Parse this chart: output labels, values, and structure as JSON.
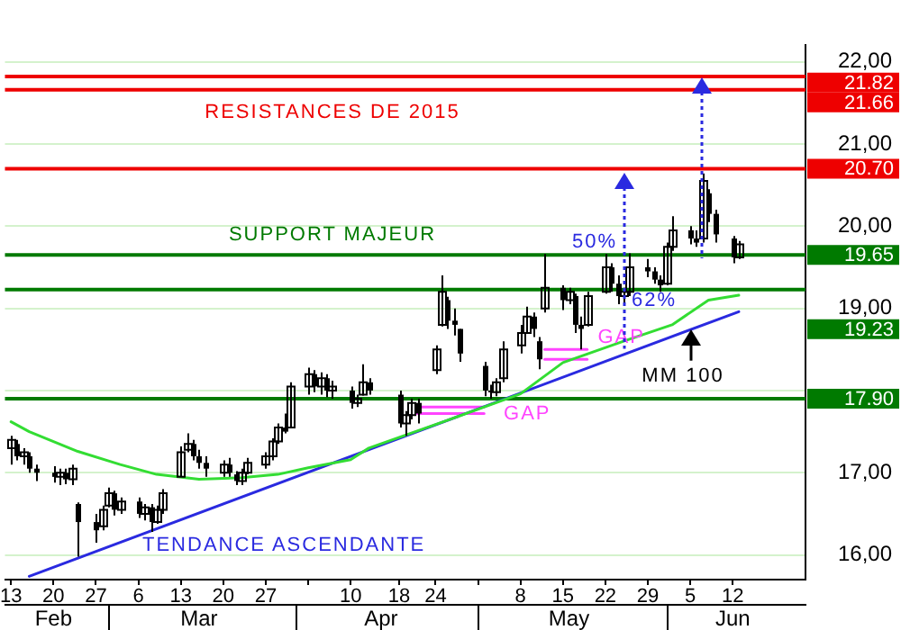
{
  "chart_data": {
    "type": "candlestick",
    "series": [
      {
        "color": "#000000",
        "x": [
          "--02-13",
          "--02-14",
          "--02-15",
          "--02-16",
          "--02-17",
          "--02-20",
          "--02-21",
          "--02-22",
          "--02-23",
          "--02-24",
          "--02-27",
          "--02-28",
          "--03-01",
          "--03-02",
          "--03-03",
          "--03-06",
          "--03-07",
          "--03-08",
          "--03-09",
          "--03-10",
          "--03-13",
          "--03-14",
          "--03-15",
          "--03-16",
          "--03-17",
          "--03-20",
          "--03-21",
          "--03-22",
          "--03-23",
          "--03-24",
          "--03-27",
          "--03-28",
          "--03-29",
          "--03-30",
          "--03-31",
          "--04-03",
          "--04-04",
          "--04-05",
          "--04-06",
          "--04-07",
          "--04-10",
          "--04-11",
          "--04-12",
          "--04-13",
          "--04-18",
          "--04-19",
          "--04-20",
          "--04-21",
          "--04-24",
          "--04-25",
          "--04-26",
          "--04-27",
          "--04-28",
          "--05-02",
          "--05-03",
          "--05-04",
          "--05-05",
          "--05-08",
          "--05-09",
          "--05-10",
          "--05-11",
          "--05-12",
          "--05-15",
          "--05-16",
          "--05-17",
          "--05-18",
          "--05-19",
          "--05-22",
          "--05-23",
          "--05-24",
          "--05-25",
          "--05-26",
          "--05-29",
          "--05-30",
          "--05-31",
          "--06-01",
          "--06-02",
          "--06-05",
          "--06-06",
          "--06-07",
          "--06-08",
          "--06-09",
          "--06-12",
          "--06-13"
        ],
        "ohlc": [
          [
            17.3,
            17.45,
            17.1,
            17.4
          ],
          [
            17.35,
            17.4,
            17.15,
            17.2
          ],
          [
            17.2,
            17.3,
            17.1,
            17.25
          ],
          [
            17.2,
            17.25,
            17.0,
            17.05
          ],
          [
            17.05,
            17.1,
            16.9,
            17.0
          ],
          [
            17.0,
            17.08,
            16.88,
            16.95
          ],
          [
            16.95,
            17.05,
            16.85,
            17.0
          ],
          [
            17.0,
            17.05,
            16.86,
            16.92
          ],
          [
            16.92,
            17.1,
            16.85,
            17.05
          ],
          [
            16.62,
            16.64,
            15.98,
            16.4
          ],
          [
            16.4,
            16.5,
            16.15,
            16.3
          ],
          [
            16.35,
            16.6,
            16.3,
            16.55
          ],
          [
            16.6,
            16.82,
            16.58,
            16.75
          ],
          [
            16.75,
            16.78,
            16.48,
            16.55
          ],
          [
            16.55,
            16.7,
            16.5,
            16.65
          ],
          [
            16.65,
            16.7,
            16.45,
            16.5
          ],
          [
            16.5,
            16.62,
            16.42,
            16.58
          ],
          [
            16.58,
            16.62,
            16.28,
            16.4
          ],
          [
            16.4,
            16.6,
            16.38,
            16.55
          ],
          [
            16.55,
            16.8,
            16.5,
            16.75
          ],
          [
            16.95,
            17.32,
            16.95,
            17.25
          ],
          [
            17.28,
            17.48,
            17.25,
            17.35
          ],
          [
            17.35,
            17.4,
            17.15,
            17.2
          ],
          [
            17.2,
            17.28,
            17.05,
            17.12
          ],
          [
            17.12,
            17.2,
            16.95,
            17.05
          ],
          [
            17.0,
            17.15,
            16.95,
            17.1
          ],
          [
            17.1,
            17.18,
            16.95,
            17.0
          ],
          [
            16.98,
            17.02,
            16.85,
            16.9
          ],
          [
            16.9,
            17.05,
            16.85,
            17.0
          ],
          [
            17.0,
            17.18,
            16.98,
            17.12
          ],
          [
            17.1,
            17.25,
            17.05,
            17.2
          ],
          [
            17.2,
            17.42,
            17.15,
            17.38
          ],
          [
            17.38,
            17.6,
            17.35,
            17.55
          ],
          [
            17.55,
            17.72,
            17.48,
            17.5
          ],
          [
            17.55,
            18.1,
            17.55,
            18.05
          ],
          [
            18.05,
            18.28,
            17.95,
            18.2
          ],
          [
            18.2,
            18.25,
            17.98,
            18.05
          ],
          [
            18.05,
            18.22,
            17.95,
            18.15
          ],
          [
            18.15,
            18.2,
            17.92,
            18.0
          ],
          [
            18.0,
            18.12,
            17.9,
            18.05
          ],
          [
            18.0,
            18.05,
            17.78,
            17.85
          ],
          [
            17.85,
            17.95,
            17.8,
            17.9
          ],
          [
            17.95,
            18.32,
            17.94,
            18.1
          ],
          [
            18.1,
            18.15,
            17.95,
            18.0
          ],
          [
            17.95,
            18.0,
            17.55,
            17.6
          ],
          [
            17.6,
            17.75,
            17.45,
            17.7
          ],
          [
            17.7,
            17.9,
            17.65,
            17.85
          ],
          [
            17.85,
            17.9,
            17.6,
            17.72
          ],
          [
            18.25,
            18.55,
            18.2,
            18.5
          ],
          [
            18.8,
            19.4,
            18.78,
            19.2
          ],
          [
            19.1,
            19.14,
            18.75,
            18.85
          ],
          [
            18.85,
            19.0,
            18.67,
            18.8
          ],
          [
            18.75,
            18.75,
            18.35,
            18.45
          ],
          [
            18.3,
            18.35,
            17.93,
            18.0
          ],
          [
            18.0,
            18.07,
            17.9,
            17.98
          ],
          [
            17.98,
            18.15,
            17.93,
            18.1
          ],
          [
            18.15,
            18.6,
            18.1,
            18.5
          ],
          [
            18.55,
            18.8,
            18.45,
            18.7
          ],
          [
            18.7,
            19.02,
            18.7,
            18.9
          ],
          [
            18.9,
            18.95,
            18.65,
            18.75
          ],
          [
            18.6,
            18.65,
            18.26,
            18.38
          ],
          [
            19.0,
            19.66,
            18.95,
            19.25
          ],
          [
            19.25,
            19.28,
            18.98,
            19.1
          ],
          [
            19.1,
            19.25,
            19.05,
            19.2
          ],
          [
            19.15,
            19.18,
            18.7,
            18.8
          ],
          [
            18.8,
            18.9,
            18.5,
            18.75
          ],
          [
            18.8,
            19.2,
            18.78,
            19.15
          ],
          [
            19.2,
            19.66,
            19.18,
            19.5
          ],
          [
            19.5,
            19.55,
            19.2,
            19.3
          ],
          [
            19.3,
            19.4,
            19.05,
            19.15
          ],
          [
            19.15,
            19.25,
            19.05,
            19.2
          ],
          [
            19.2,
            19.67,
            19.15,
            19.5
          ],
          [
            19.5,
            19.6,
            19.38,
            19.45
          ],
          [
            19.45,
            19.5,
            19.3,
            19.35
          ],
          [
            19.35,
            19.4,
            19.2,
            19.28
          ],
          [
            19.3,
            19.8,
            19.28,
            19.75
          ],
          [
            19.75,
            20.12,
            19.7,
            19.95
          ],
          [
            19.95,
            20.0,
            19.78,
            19.85
          ],
          [
            19.85,
            19.95,
            19.75,
            19.8
          ],
          [
            19.85,
            20.64,
            19.8,
            20.55
          ],
          [
            20.4,
            20.45,
            20.05,
            20.15
          ],
          [
            20.15,
            20.2,
            19.8,
            19.9
          ],
          [
            19.85,
            19.88,
            19.55,
            19.62
          ],
          [
            19.62,
            19.82,
            19.6,
            19.78
          ]
        ]
      },
      {
        "type": "line",
        "color": "#33dd33",
        "x": [
          "--02-13",
          "--02-16",
          "--02-24",
          "--03-03",
          "--03-09",
          "--03-16",
          "--03-23",
          "--03-29",
          "--04-03",
          "--04-10",
          "--04-13",
          "--04-26",
          "--05-08",
          "--05-15",
          "--05-25",
          "--06-02",
          "--06-08",
          "--06-13"
        ],
        "values": [
          17.62,
          17.5,
          17.26,
          17.1,
          16.98,
          16.92,
          16.94,
          16.98,
          17.06,
          17.16,
          17.3,
          17.64,
          17.96,
          18.34,
          18.6,
          18.8,
          19.1,
          19.16
        ]
      },
      {
        "type": "line",
        "color": "#2a2ae0",
        "x": [
          "--02-16",
          "--06-13"
        ],
        "values": [
          15.74,
          18.96
        ]
      },
      {
        "type": "line",
        "color": "#ff44ff",
        "x": [
          "--04-21",
          "--05-02"
        ],
        "values": [
          17.8,
          17.8
        ]
      },
      {
        "type": "line",
        "color": "#ff44ff",
        "x": [
          "--04-21",
          "--05-02"
        ],
        "values": [
          17.72,
          17.72
        ]
      },
      {
        "type": "line",
        "color": "#ff44ff",
        "x": [
          "--05-12",
          "--05-19"
        ],
        "values": [
          18.5,
          18.5
        ]
      },
      {
        "type": "line",
        "color": "#ff44ff",
        "x": [
          "--05-12",
          "--05-19"
        ],
        "values": [
          18.38,
          18.38
        ]
      }
    ],
    "xlim": [
      "--02-12",
      "--06-24"
    ],
    "xticks": [
      {
        "value": "--02-13",
        "label": "13"
      },
      {
        "value": "--02-20",
        "label": "20"
      },
      {
        "value": "--02-27",
        "label": "27"
      },
      {
        "value": "--03-06",
        "label": "6"
      },
      {
        "value": "--03-13",
        "label": "13"
      },
      {
        "value": "--03-20",
        "label": "20"
      },
      {
        "value": "--03-27",
        "label": "27"
      },
      {
        "value": "--04-03",
        "label": null
      },
      {
        "value": "--04-10",
        "label": "10"
      },
      {
        "value": "--04-18",
        "label": "18"
      },
      {
        "value": "--04-24",
        "label": "24"
      },
      {
        "value": "--05-01",
        "label": null
      },
      {
        "value": "--05-08",
        "label": "8"
      },
      {
        "value": "--05-15",
        "label": "15"
      },
      {
        "value": "--05-22",
        "label": "22"
      },
      {
        "value": "--05-29",
        "label": "29"
      },
      {
        "value": "--06-05",
        "label": "5"
      },
      {
        "value": "--06-12",
        "label": "12"
      }
    ],
    "x2lim": [
      "--02-12",
      "--06-24"
    ],
    "x2ticks": [
      {
        "value": "--02-20",
        "label": "Feb"
      },
      {
        "value": "--03-16",
        "label": "Mar"
      },
      {
        "value": "--04-15",
        "label": "Apr"
      },
      {
        "value": "--05-16",
        "label": "May"
      },
      {
        "value": "--06-12",
        "label": "Jun"
      }
    ],
    "ylim": [
      15.7,
      22.2
    ],
    "yticks": [
      {
        "value": 16,
        "label": "16,00"
      },
      {
        "value": 17,
        "label": "17,00"
      },
      {
        "value": 18,
        "label": null
      },
      {
        "value": 19,
        "label": "19,00"
      },
      {
        "value": 20,
        "label": "20,00"
      },
      {
        "value": 21,
        "label": "21,00"
      },
      {
        "value": 22,
        "label": "22,00"
      }
    ],
    "grid": "y",
    "marker": "none",
    "ref_lines": [
      {
        "axis": "y",
        "value": 21.82,
        "label": "21.82",
        "color": "#ee0000"
      },
      {
        "axis": "y",
        "value": 21.66,
        "label": "21.66",
        "color": "#ee0000"
      },
      {
        "axis": "y",
        "value": 20.7,
        "label": "20.70",
        "color": "#ee0000"
      },
      {
        "axis": "y",
        "value": 19.65,
        "label": "19.65",
        "color": "#007a00"
      },
      {
        "axis": "y",
        "value": 19.23,
        "label": "19.23",
        "color": "#007a00"
      },
      {
        "axis": "y",
        "value": 17.9,
        "label": "17.90",
        "color": "#007a00"
      }
    ],
    "annotations": [
      {
        "text": "RESISTANCES DE 2015",
        "x": "--04-07",
        "y": 20.7
      },
      {
        "text": "SUPPORT MAJEUR",
        "x": "--04-07",
        "y": 19.65
      },
      {
        "text": "TENDANCE ASCENDANTE",
        "x": "--03-30",
        "y": 16.9
      },
      {
        "text": "50%",
        "x": "--05-25",
        "y": 19.65
      },
      {
        "text": "62%",
        "x": "--05-25",
        "y": 19.23
      },
      {
        "text": "GAP",
        "x": "--05-02",
        "y": 17.72
      },
      {
        "text": "GAP",
        "x": "--05-19",
        "y": 18.38
      },
      {
        "text": "MM 100",
        "x": "--06-05",
        "y": 18.74
      }
    ]
  }
}
